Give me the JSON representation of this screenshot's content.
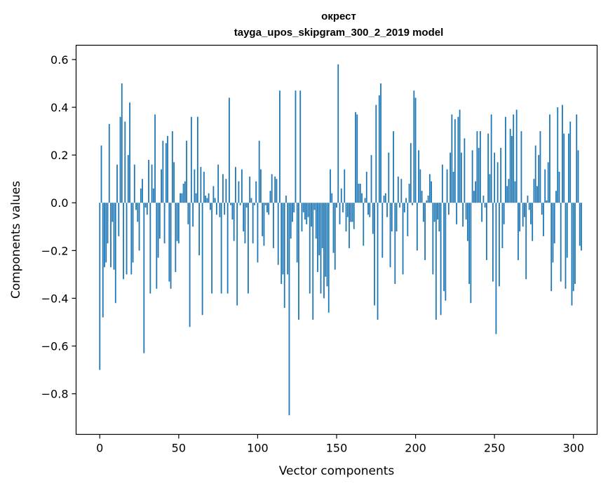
{
  "chart_data": {
    "type": "bar",
    "title": "окрест",
    "subtitle": "tayga_upos_skipgram_300_2_2019 model",
    "xlabel": "Vector components",
    "ylabel": "Components values",
    "xlim": [
      -15,
      315
    ],
    "ylim": [
      -0.97,
      0.66
    ],
    "xticks": [
      0,
      50,
      100,
      150,
      200,
      250,
      300
    ],
    "xtick_labels": [
      "0",
      "50",
      "100",
      "150",
      "200",
      "250",
      "300"
    ],
    "yticks": [
      -0.8,
      -0.6,
      -0.4,
      -0.2,
      0.0,
      0.2,
      0.4,
      0.6
    ],
    "ytick_labels": [
      "−0.8",
      "−0.6",
      "−0.4",
      "−0.2",
      "0.0",
      "0.2",
      "0.4",
      "0.6"
    ],
    "bar_color": "#1f77b4",
    "grid": false,
    "values": [
      -0.7,
      0.24,
      -0.48,
      -0.27,
      -0.25,
      -0.17,
      0.33,
      -0.27,
      -0.08,
      -0.28,
      -0.42,
      0.16,
      -0.14,
      0.36,
      0.5,
      -0.32,
      0.34,
      -0.3,
      0.2,
      0.42,
      -0.3,
      -0.25,
      0.16,
      -0.03,
      -0.08,
      -0.2,
      0.06,
      0.1,
      -0.63,
      -0.02,
      -0.05,
      0.18,
      -0.38,
      0.16,
      0.06,
      0.37,
      -0.36,
      -0.23,
      -0.15,
      0.14,
      0.26,
      -0.17,
      0.25,
      0.28,
      -0.33,
      -0.36,
      0.3,
      0.17,
      -0.29,
      -0.16,
      -0.17,
      0.04,
      0.04,
      0.08,
      0.09,
      0.26,
      -0.09,
      -0.52,
      0.36,
      -0.1,
      0.14,
      0.04,
      0.36,
      -0.22,
      0.15,
      -0.47,
      0.13,
      0.03,
      0.02,
      0.04,
      -0.03,
      -0.38,
      0.07,
      0.02,
      -0.05,
      0.16,
      -0.06,
      -0.38,
      0.12,
      -0.05,
      0.1,
      -0.38,
      0.44,
      -0.01,
      -0.07,
      -0.16,
      0.15,
      -0.43,
      0.09,
      -0.01,
      0.14,
      -0.12,
      -0.17,
      -0.02,
      -0.38,
      0.11,
      0.02,
      -0.17,
      -0.01,
      0.09,
      -0.25,
      0.26,
      0.14,
      -0.14,
      -0.18,
      -0.01,
      -0.04,
      -0.05,
      0.05,
      0.12,
      -0.19,
      0.11,
      0.1,
      -0.26,
      0.47,
      -0.34,
      -0.3,
      -0.44,
      0.03,
      -0.3,
      -0.89,
      -0.15,
      -0.08,
      -0.04,
      0.47,
      -0.25,
      -0.49,
      0.47,
      -0.12,
      -0.04,
      -0.07,
      -0.09,
      -0.06,
      -0.38,
      -0.1,
      -0.49,
      -0.03,
      -0.15,
      -0.29,
      -0.22,
      -0.38,
      -0.19,
      -0.4,
      -0.31,
      -0.35,
      -0.46,
      0.14,
      0.04,
      -0.21,
      -0.28,
      -0.02,
      0.58,
      -0.09,
      0.06,
      -0.04,
      0.14,
      -0.12,
      -0.06,
      -0.19,
      -0.08,
      -0.08,
      -0.11,
      0.38,
      0.37,
      0.08,
      0.08,
      0.04,
      -0.18,
      0.02,
      0.13,
      -0.05,
      -0.06,
      0.2,
      -0.13,
      -0.43,
      0.41,
      -0.49,
      0.45,
      0.5,
      -0.23,
      0.03,
      0.04,
      -0.06,
      0.21,
      -0.27,
      -0.12,
      0.3,
      -0.34,
      -0.12,
      0.11,
      -0.02,
      0.1,
      -0.3,
      -0.04,
      0.02,
      -0.14,
      0.08,
      0.25,
      -0.01,
      0.47,
      0.44,
      -0.2,
      0.22,
      0.14,
      0.05,
      -0.08,
      -0.24,
      0.01,
      0.03,
      0.12,
      0.09,
      -0.3,
      -0.08,
      -0.49,
      -0.07,
      -0.12,
      -0.47,
      0.16,
      -0.37,
      -0.41,
      0.14,
      -0.05,
      0.21,
      0.37,
      0.13,
      0.35,
      -0.09,
      0.36,
      0.39,
      0.21,
      -0.1,
      0.27,
      -0.07,
      -0.16,
      -0.34,
      -0.42,
      0.22,
      0.05,
      0.09,
      0.3,
      0.23,
      0.3,
      -0.08,
      0.03,
      -0.02,
      -0.24,
      0.29,
      0.12,
      0.37,
      -0.33,
      0.21,
      -0.55,
      0.17,
      -0.35,
      0.23,
      -0.19,
      -0.09,
      0.36,
      0.07,
      0.1,
      0.31,
      0.28,
      0.37,
      0.09,
      0.39,
      -0.24,
      -0.12,
      0.3,
      -0.1,
      -0.06,
      -0.32,
      0.03,
      -0.03,
      -0.09,
      -0.16,
      0.1,
      0.24,
      0.07,
      0.2,
      0.3,
      -0.05,
      -0.14,
      0.14,
      0.01,
      0.17,
      0.37,
      -0.37,
      -0.25,
      -0.17,
      0.05,
      0.4,
      0.13,
      -0.33,
      0.41,
      0.29,
      -0.36,
      -0.23,
      0.29,
      0.34,
      -0.43,
      -0.37,
      -0.34,
      0.37,
      0.22,
      -0.18,
      -0.2
    ]
  }
}
